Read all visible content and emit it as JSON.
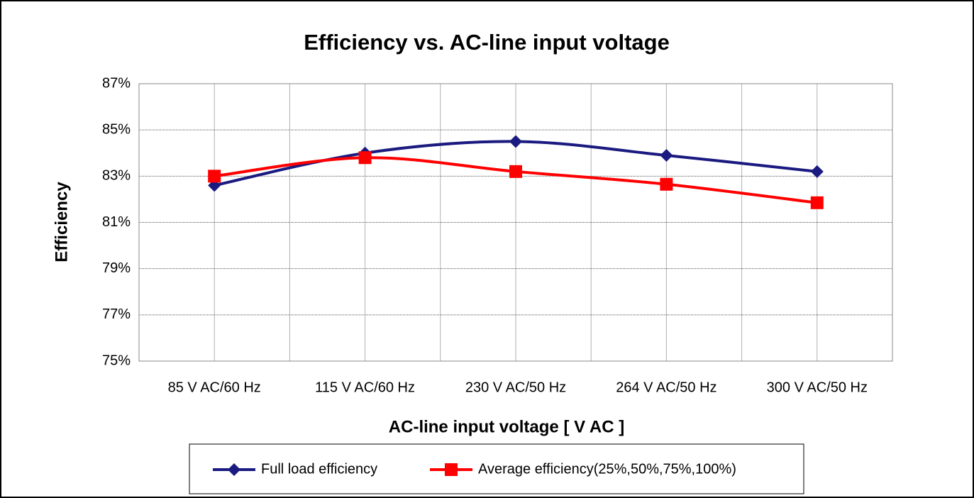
{
  "chart_data": {
    "type": "line",
    "title": "Efficiency vs. AC-line input voltage",
    "x_label": "AC-line input voltage [ V AC ]",
    "y_label": "Efficiency",
    "categories": [
      "85 V AC/60 Hz",
      "115 V AC/60 Hz",
      "230 V AC/50 Hz",
      "264 V AC/50 Hz",
      "300 V AC/50 Hz"
    ],
    "series": [
      {
        "name": "Full load efficiency",
        "color": "#1a1a80",
        "marker": "diamond",
        "values": [
          82.6,
          84.0,
          84.5,
          83.9,
          83.2
        ]
      },
      {
        "name": "Average efficiency(25%,50%,75%,100%)",
        "color": "#ff0000",
        "marker": "square",
        "values": [
          83.0,
          83.8,
          83.2,
          82.65,
          81.85
        ]
      }
    ],
    "ylim": [
      75,
      87
    ],
    "yticks": [
      {
        "value": 75,
        "label": "75%"
      },
      {
        "value": 77,
        "label": "77%"
      },
      {
        "value": 79,
        "label": "79%"
      },
      {
        "value": 81,
        "label": "81%"
      },
      {
        "value": 83,
        "label": "83%"
      },
      {
        "value": 85,
        "label": "85%"
      },
      {
        "value": 87,
        "label": "87%"
      }
    ],
    "grid": true,
    "smooth": true,
    "legend": "bottom"
  }
}
